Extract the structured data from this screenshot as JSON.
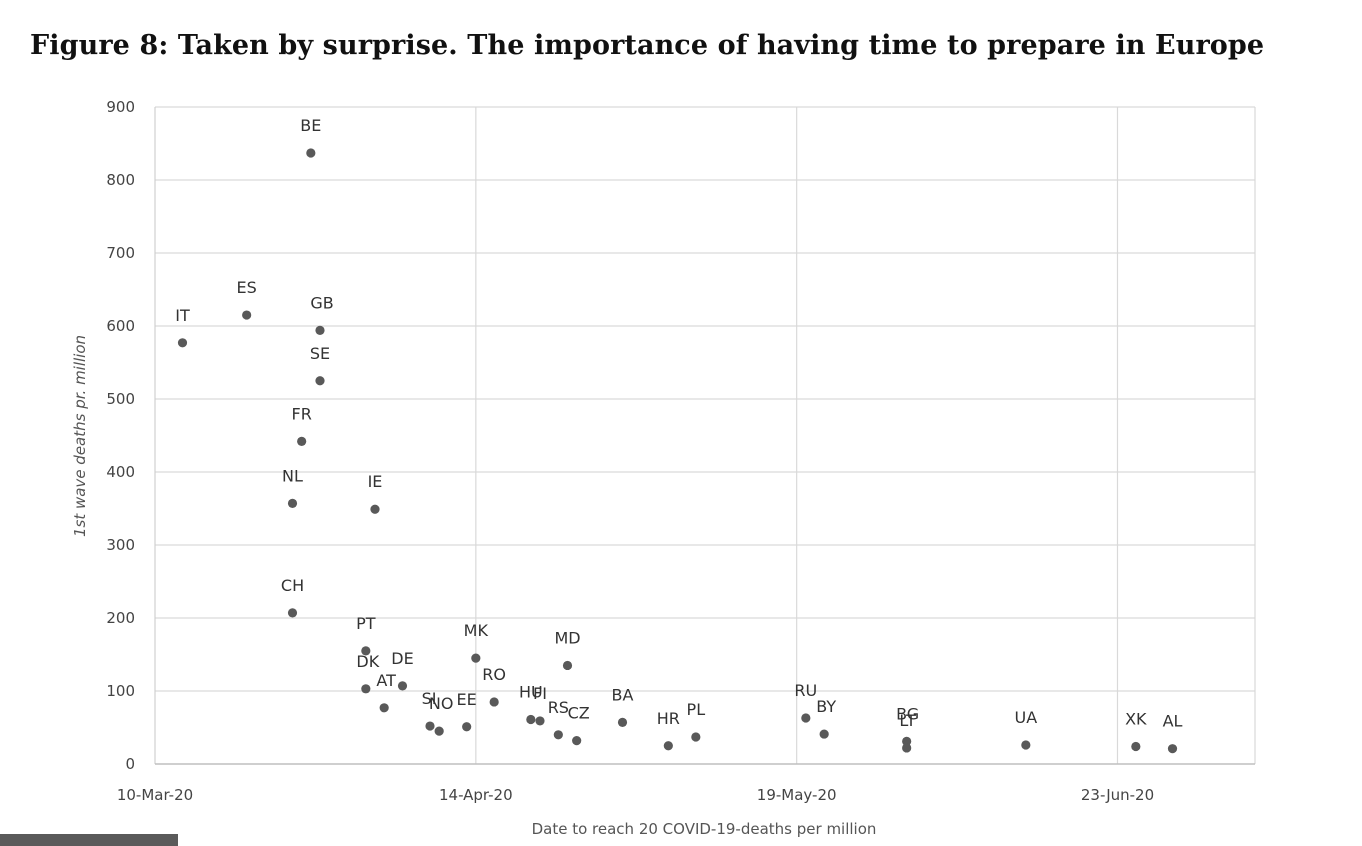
{
  "figure": {
    "title": "Figure 8: Taken by surprise. The importance of having time to prepare in Europe"
  },
  "chart_data": {
    "type": "scatter",
    "title": "Figure 8: Taken by surprise. The importance of having time to prepare in Europe",
    "xlabel": "Date to reach 20 COVID-19-deaths per million",
    "ylabel": "1st wave deaths pr. million",
    "x_ticks": [
      "10-Mar-20",
      "14-Apr-20",
      "19-May-20",
      "23-Jun-20"
    ],
    "x_tick_dates": [
      "2020-03-10",
      "2020-04-14",
      "2020-05-19",
      "2020-06-23"
    ],
    "xlim": [
      "2020-03-10",
      "2020-07-08"
    ],
    "ylim": [
      0,
      900
    ],
    "y_ticks": [
      0,
      100,
      200,
      300,
      400,
      500,
      600,
      700,
      800,
      900
    ],
    "grid": true,
    "legend": "none",
    "point_color": "#595959",
    "points": [
      {
        "label": "IT",
        "x": "2020-03-13",
        "y": 577
      },
      {
        "label": "ES",
        "x": "2020-03-20",
        "y": 615
      },
      {
        "label": "BE",
        "x": "2020-03-27",
        "y": 837
      },
      {
        "label": "GB",
        "x": "2020-03-28",
        "y": 594
      },
      {
        "label": "SE",
        "x": "2020-03-28",
        "y": 525
      },
      {
        "label": "FR",
        "x": "2020-03-26",
        "y": 442
      },
      {
        "label": "NL",
        "x": "2020-03-25",
        "y": 357
      },
      {
        "label": "IE",
        "x": "2020-04-03",
        "y": 349
      },
      {
        "label": "CH",
        "x": "2020-03-25",
        "y": 207
      },
      {
        "label": "PT",
        "x": "2020-04-02",
        "y": 155
      },
      {
        "label": "DK",
        "x": "2020-04-02",
        "y": 103
      },
      {
        "label": "DE",
        "x": "2020-04-06",
        "y": 107
      },
      {
        "label": "AT",
        "x": "2020-04-04",
        "y": 77
      },
      {
        "label": "SI",
        "x": "2020-04-09",
        "y": 52
      },
      {
        "label": "NO",
        "x": "2020-04-10",
        "y": 45
      },
      {
        "label": "EE",
        "x": "2020-04-13",
        "y": 51
      },
      {
        "label": "MK",
        "x": "2020-04-14",
        "y": 145
      },
      {
        "label": "RO",
        "x": "2020-04-16",
        "y": 85
      },
      {
        "label": "HU",
        "x": "2020-04-20",
        "y": 61
      },
      {
        "label": "FI",
        "x": "2020-04-21",
        "y": 59
      },
      {
        "label": "RS",
        "x": "2020-04-23",
        "y": 40
      },
      {
        "label": "MD",
        "x": "2020-04-24",
        "y": 135
      },
      {
        "label": "CZ",
        "x": "2020-04-25",
        "y": 32
      },
      {
        "label": "BA",
        "x": "2020-04-30",
        "y": 57
      },
      {
        "label": "HR",
        "x": "2020-05-05",
        "y": 25
      },
      {
        "label": "PL",
        "x": "2020-05-08",
        "y": 37
      },
      {
        "label": "RU",
        "x": "2020-05-20",
        "y": 63
      },
      {
        "label": "BY",
        "x": "2020-05-22",
        "y": 41
      },
      {
        "label": "BG",
        "x": "2020-05-31",
        "y": 31
      },
      {
        "label": "LT",
        "x": "2020-05-31",
        "y": 22
      },
      {
        "label": "UA",
        "x": "2020-06-13",
        "y": 26
      },
      {
        "label": "XK",
        "x": "2020-06-25",
        "y": 24
      },
      {
        "label": "AL",
        "x": "2020-06-29",
        "y": 21
      }
    ]
  }
}
